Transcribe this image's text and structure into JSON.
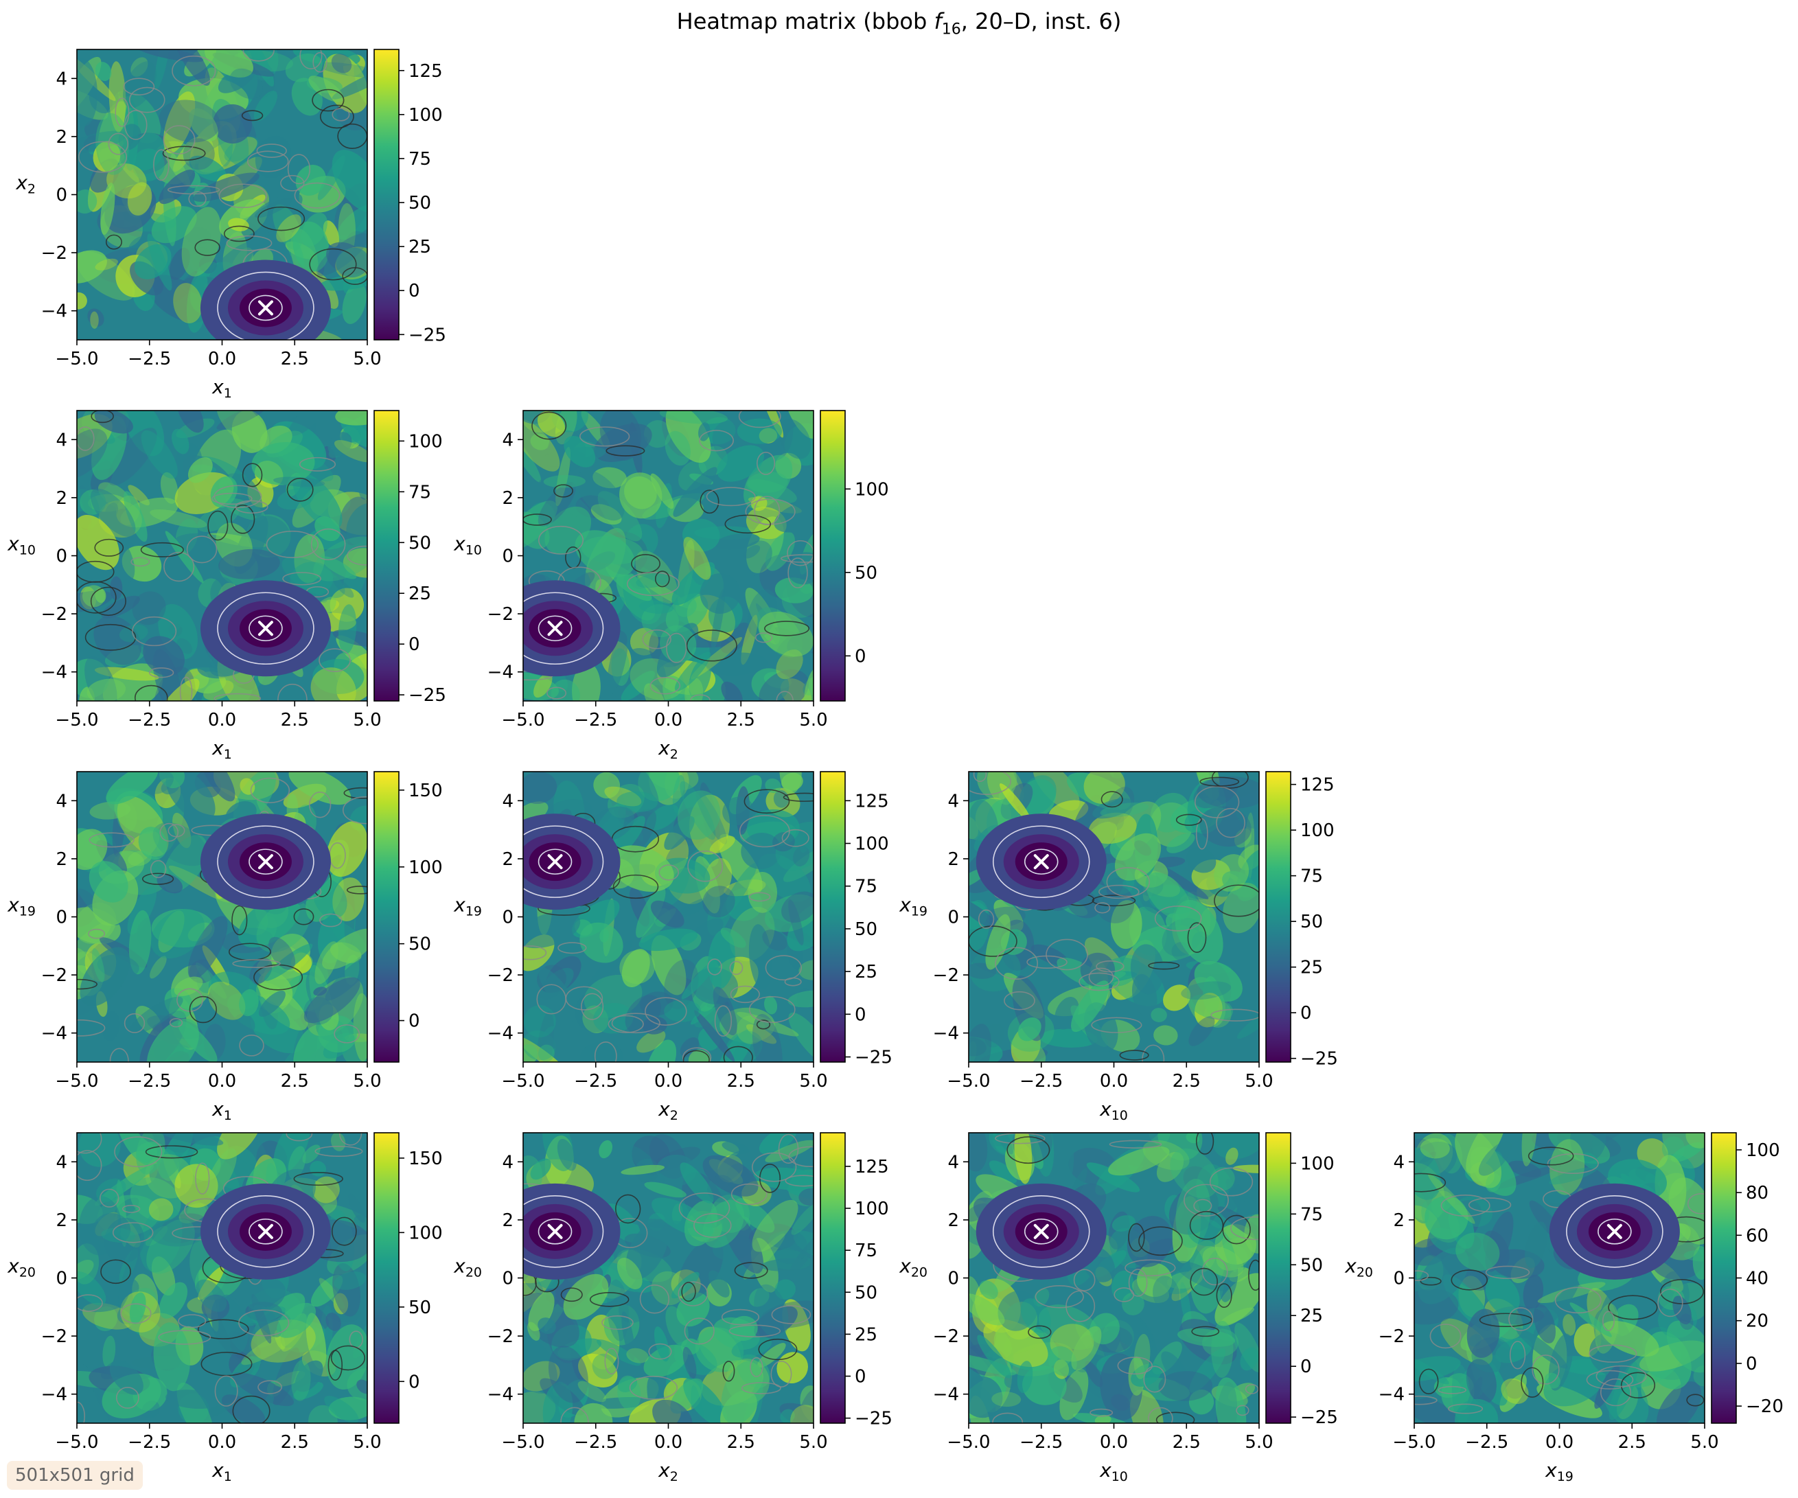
{
  "figure": {
    "title_prefix": "Heatmap matrix (bbob ",
    "title_func": "f",
    "title_func_sub": "16",
    "title_suffix": ", 20–D, inst. 6)",
    "grid_note": "501x501 grid"
  },
  "colors": {
    "viridis": [
      "#440154",
      "#482878",
      "#3e4989",
      "#31688e",
      "#26828e",
      "#1f9e89",
      "#35b779",
      "#6ece58",
      "#b5de2b",
      "#fde725"
    ],
    "marker": "#ffffff",
    "contour_light": "#d8d8e8",
    "contour_mid": "#8a8a8a",
    "contour_dark": "#2a2a2a"
  },
  "chart_data": [
    {
      "type": "heatmap",
      "row": 0,
      "col": 0,
      "xlabel": "x",
      "xsub": "1",
      "ylabel": "x",
      "ysub": "2",
      "xlim": [
        -5,
        5
      ],
      "ylim": [
        -5,
        5
      ],
      "xticks": [
        "−5.0",
        "−2.5",
        "0.0",
        "2.5",
        "5.0"
      ],
      "yticks": [
        "−4",
        "−2",
        "0",
        "2",
        "4"
      ],
      "zmin": -28,
      "zmax": 137,
      "cbar_ticks": [
        -25,
        0,
        25,
        50,
        75,
        100,
        125
      ],
      "cbar_labels": [
        "−25",
        "0",
        "25",
        "50",
        "75",
        "100",
        "125"
      ],
      "minimum": [
        1.5,
        -3.9
      ]
    },
    {
      "type": "heatmap",
      "row": 1,
      "col": 0,
      "xlabel": "x",
      "xsub": "1",
      "ylabel": "x",
      "ysub": "10",
      "xlim": [
        -5,
        5
      ],
      "ylim": [
        -5,
        5
      ],
      "xticks": [
        "−5.0",
        "−2.5",
        "0.0",
        "2.5",
        "5.0"
      ],
      "yticks": [
        "−4",
        "−2",
        "0",
        "2",
        "4"
      ],
      "zmin": -28,
      "zmax": 115,
      "cbar_ticks": [
        -25,
        0,
        25,
        50,
        75,
        100
      ],
      "cbar_labels": [
        "−25",
        "0",
        "25",
        "50",
        "75",
        "100"
      ],
      "minimum": [
        1.5,
        -2.5
      ]
    },
    {
      "type": "heatmap",
      "row": 1,
      "col": 1,
      "xlabel": "x",
      "xsub": "2",
      "ylabel": "x",
      "ysub": "10",
      "xlim": [
        -5,
        5
      ],
      "ylim": [
        -5,
        5
      ],
      "xticks": [
        "−5.0",
        "−2.5",
        "0.0",
        "2.5",
        "5.0"
      ],
      "yticks": [
        "−4",
        "−2",
        "0",
        "2",
        "4"
      ],
      "zmin": -27,
      "zmax": 147,
      "cbar_ticks": [
        0,
        50,
        100
      ],
      "cbar_labels": [
        "0",
        "50",
        "100"
      ],
      "minimum": [
        -3.9,
        -2.5
      ]
    },
    {
      "type": "heatmap",
      "row": 2,
      "col": 0,
      "xlabel": "x",
      "xsub": "1",
      "ylabel": "x",
      "ysub": "19",
      "xlim": [
        -5,
        5
      ],
      "ylim": [
        -5,
        5
      ],
      "xticks": [
        "−5.0",
        "−2.5",
        "0.0",
        "2.5",
        "5.0"
      ],
      "yticks": [
        "−4",
        "−2",
        "0",
        "2",
        "4"
      ],
      "zmin": -27,
      "zmax": 162,
      "cbar_ticks": [
        0,
        50,
        100,
        150
      ],
      "cbar_labels": [
        "0",
        "50",
        "100",
        "150"
      ],
      "minimum": [
        1.5,
        1.9
      ]
    },
    {
      "type": "heatmap",
      "row": 2,
      "col": 1,
      "xlabel": "x",
      "xsub": "2",
      "ylabel": "x",
      "ysub": "19",
      "xlim": [
        -5,
        5
      ],
      "ylim": [
        -5,
        5
      ],
      "xticks": [
        "−5.0",
        "−2.5",
        "0.0",
        "2.5",
        "5.0"
      ],
      "yticks": [
        "−4",
        "−2",
        "0",
        "2",
        "4"
      ],
      "zmin": -28,
      "zmax": 142,
      "cbar_ticks": [
        -25,
        0,
        25,
        50,
        75,
        100,
        125
      ],
      "cbar_labels": [
        "−25",
        "0",
        "25",
        "50",
        "75",
        "100",
        "125"
      ],
      "minimum": [
        -3.9,
        1.9
      ]
    },
    {
      "type": "heatmap",
      "row": 2,
      "col": 2,
      "xlabel": "x",
      "xsub": "10",
      "ylabel": "x",
      "ysub": "19",
      "xlim": [
        -5,
        5
      ],
      "ylim": [
        -5,
        5
      ],
      "xticks": [
        "−5.0",
        "−2.5",
        "0.0",
        "2.5",
        "5.0"
      ],
      "yticks": [
        "−4",
        "−2",
        "0",
        "2",
        "4"
      ],
      "zmin": -27,
      "zmax": 132,
      "cbar_ticks": [
        -25,
        0,
        25,
        50,
        75,
        100,
        125
      ],
      "cbar_labels": [
        "−25",
        "0",
        "25",
        "50",
        "75",
        "100",
        "125"
      ],
      "minimum": [
        -2.5,
        1.9
      ]
    },
    {
      "type": "heatmap",
      "row": 3,
      "col": 0,
      "xlabel": "x",
      "xsub": "1",
      "ylabel": "x",
      "ysub": "20",
      "xlim": [
        -5,
        5
      ],
      "ylim": [
        -5,
        5
      ],
      "xticks": [
        "−5.0",
        "−2.5",
        "0.0",
        "2.5",
        "5.0"
      ],
      "yticks": [
        "−4",
        "−2",
        "0",
        "2",
        "4"
      ],
      "zmin": -28,
      "zmax": 167,
      "cbar_ticks": [
        0,
        50,
        100,
        150
      ],
      "cbar_labels": [
        "0",
        "50",
        "100",
        "150"
      ],
      "minimum": [
        1.5,
        1.6
      ]
    },
    {
      "type": "heatmap",
      "row": 3,
      "col": 1,
      "xlabel": "x",
      "xsub": "2",
      "ylabel": "x",
      "ysub": "20",
      "xlim": [
        -5,
        5
      ],
      "ylim": [
        -5,
        5
      ],
      "xticks": [
        "−5.0",
        "−2.5",
        "0.0",
        "2.5",
        "5.0"
      ],
      "yticks": [
        "−4",
        "−2",
        "0",
        "2",
        "4"
      ],
      "zmin": -28,
      "zmax": 145,
      "cbar_ticks": [
        -25,
        0,
        25,
        50,
        75,
        100,
        125
      ],
      "cbar_labels": [
        "−25",
        "0",
        "25",
        "50",
        "75",
        "100",
        "125"
      ],
      "minimum": [
        -3.9,
        1.6
      ]
    },
    {
      "type": "heatmap",
      "row": 3,
      "col": 2,
      "xlabel": "x",
      "xsub": "10",
      "ylabel": "x",
      "ysub": "20",
      "xlim": [
        -5,
        5
      ],
      "ylim": [
        -5,
        5
      ],
      "xticks": [
        "−5.0",
        "−2.5",
        "0.0",
        "2.5",
        "5.0"
      ],
      "yticks": [
        "−4",
        "−2",
        "0",
        "2",
        "4"
      ],
      "zmin": -28,
      "zmax": 115,
      "cbar_ticks": [
        -25,
        0,
        25,
        50,
        75,
        100
      ],
      "cbar_labels": [
        "−25",
        "0",
        "25",
        "50",
        "75",
        "100"
      ],
      "minimum": [
        -2.5,
        1.6
      ]
    },
    {
      "type": "heatmap",
      "row": 3,
      "col": 3,
      "xlabel": "x",
      "xsub": "19",
      "ylabel": "x",
      "ysub": "20",
      "xlim": [
        -5,
        5
      ],
      "ylim": [
        -5,
        5
      ],
      "xticks": [
        "−5.0",
        "−2.5",
        "0.0",
        "2.5",
        "5.0"
      ],
      "yticks": [
        "−4",
        "−2",
        "0",
        "2",
        "4"
      ],
      "zmin": -28,
      "zmax": 108,
      "cbar_ticks": [
        -20,
        0,
        20,
        40,
        60,
        80,
        100
      ],
      "cbar_labels": [
        "−20",
        "0",
        "20",
        "40",
        "60",
        "80",
        "100"
      ],
      "minimum": [
        1.9,
        1.6
      ]
    }
  ]
}
